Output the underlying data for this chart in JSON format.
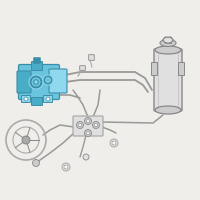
{
  "bg_color": "#f0eeea",
  "pump_color": "#6ac4de",
  "pump_dark": "#3a8fa8",
  "pump_mid": "#4aadc8",
  "pump_light": "#90d8ed",
  "line_color": "#999999",
  "line_dark": "#777777",
  "part_fill": "#cccccc",
  "part_dark": "#888888",
  "part_light": "#e0e0e0",
  "white": "#f8f8f8",
  "gray_mid": "#aaaaaa"
}
